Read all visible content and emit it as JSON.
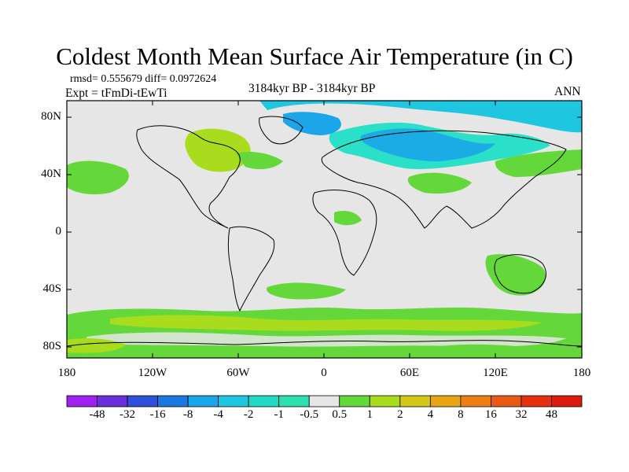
{
  "title": "Coldest Month Mean Surface Air Temperature (in C)",
  "stats_line": "rmsd= 0.555679 diff= 0.0972624",
  "experiment_line": "Expt = tFmDi-tEwTi",
  "period_line": "3184kyr BP - 3184kyr BP",
  "season_label": "ANN",
  "y_ticks": [
    "80N",
    "40N",
    "0",
    "40S",
    "80S"
  ],
  "x_ticks": [
    "180",
    "120W",
    "60W",
    "0",
    "60E",
    "120E",
    "180"
  ],
  "colorbar": {
    "labels": [
      "-48",
      "-32",
      "-16",
      "-8",
      "-4",
      "-2",
      "-1",
      "-0.5",
      "0.5",
      "1",
      "2",
      "4",
      "8",
      "16",
      "32",
      "48"
    ],
    "colors": [
      "#a020f0",
      "#6a2fd8",
      "#2f50d8",
      "#1a78e0",
      "#1aa6e8",
      "#1ec6e0",
      "#22d8c4",
      "#2ce0b0",
      "#e6e6e6",
      "#64d83a",
      "#a8dc1c",
      "#d4c814",
      "#e8a614",
      "#ea8014",
      "#e85a14",
      "#e63012",
      "#dc1a0c"
    ]
  }
}
